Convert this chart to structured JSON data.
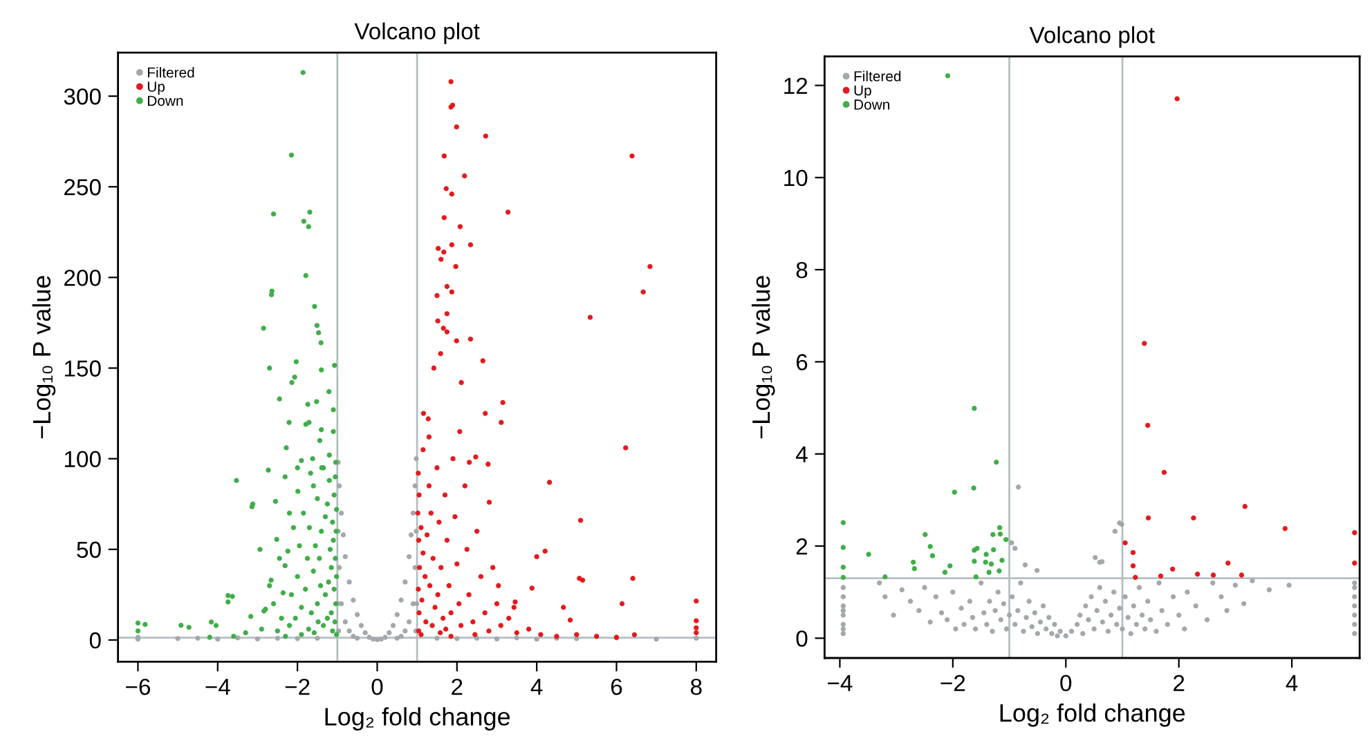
{
  "chart_data": [
    {
      "type": "scatter",
      "title": "Volcano plot",
      "xlabel": "Log₂ fold change",
      "ylabel": "−Log₁₀ P value",
      "xlim": [
        -6.5,
        8.5
      ],
      "ylim": [
        -12,
        324
      ],
      "xticks": [
        -6,
        -4,
        -2,
        0,
        2,
        4,
        6,
        8
      ],
      "yticks": [
        0,
        50,
        100,
        150,
        200,
        250,
        300
      ],
      "legend": "top left",
      "marker": "circle",
      "grid": false,
      "ref_lines": [
        {
          "axis": "x",
          "value": -1,
          "color": "#b4bec2"
        },
        {
          "axis": "x",
          "value": 1,
          "color": "#b4bec2"
        },
        {
          "axis": "y",
          "value": 1.3,
          "color": "#b4bec2"
        }
      ],
      "series": [
        {
          "name": "Filtered",
          "color": "#a3a8aa",
          "x": [
            -0.98,
            -0.95,
            -0.9,
            -0.85,
            -0.8,
            -0.7,
            -0.6,
            -0.5,
            -0.4,
            -0.3,
            -0.2,
            -0.1,
            0,
            0.1,
            0.2,
            0.3,
            0.4,
            0.5,
            0.6,
            0.7,
            0.8,
            0.85,
            0.9,
            0.95,
            0.98,
            -0.95,
            -0.9,
            -0.8,
            -0.7,
            -0.6,
            -0.5,
            0.5,
            0.6,
            0.7,
            0.8,
            0.9,
            0.95,
            -0.98,
            0.98,
            -0.99,
            0.99,
            -0.97,
            0.97,
            -1.5,
            -2,
            -2.5,
            -3,
            -3.5,
            -4,
            -4.5,
            -5,
            -6,
            -6,
            1.5,
            2,
            2.5,
            3,
            3.5,
            4,
            4.5,
            5,
            6,
            7,
            8
          ],
          "values": [
            98,
            85,
            70,
            58,
            46,
            32,
            22,
            14,
            8,
            4,
            1.5,
            0.5,
            0.2,
            0.5,
            1.5,
            4,
            8,
            14,
            22,
            32,
            46,
            58,
            70,
            85,
            100,
            40,
            20,
            10,
            5,
            2,
            1,
            1,
            2,
            5,
            10,
            20,
            40,
            60,
            60,
            20,
            20,
            5,
            5,
            1,
            0.8,
            1,
            0.6,
            1.2,
            0.5,
            1,
            0.8,
            1.5,
            0.5,
            1,
            0.8,
            1,
            0.6,
            1.2,
            0.5,
            1,
            0.8,
            1.2,
            0.5,
            1
          ]
        },
        {
          "name": "Up",
          "color": "#e41a1c",
          "x": [
            1.85,
            1.89,
            1.85,
            1.99,
            2.72,
            6.39,
            1.68,
            2.19,
            1.73,
            1.87,
            3.28,
            1.68,
            2.08,
            1.53,
            1.67,
            2.34,
            1.6,
            1.87,
            1.97,
            6.84,
            6.67,
            1.75,
            1.87,
            1.5,
            1.75,
            5.34,
            1.52,
            1.66,
            1.75,
            1.99,
            2.34,
            2.65,
            1.59,
            1.42,
            2.11,
            3.15,
            2.71,
            3.11,
            1.16,
            1.28,
            2.07,
            6.23,
            2.47,
            2.31,
            2.78,
            4.32,
            2.81,
            5.1,
            4.21,
            4.0,
            5.07,
            5.15,
            6.41,
            6.14,
            8.0,
            8.0,
            8.0,
            8.0,
            6.45,
            4.67,
            4.84,
            3.88,
            3.43,
            3.04,
            3.46,
            1.03,
            1.05,
            1.02,
            1.1,
            1.04,
            1.15,
            1.06,
            1.2,
            1.03,
            1.12,
            1.05,
            1.22,
            1.04,
            1.3,
            1.35,
            1.25,
            1.4,
            1.32,
            1.45,
            1.38,
            1.5,
            1.55,
            1.6,
            1.52,
            1.65,
            1.58,
            1.7,
            1.75,
            1.8,
            1.85,
            1.72,
            1.9,
            1.95,
            2.0,
            2.05,
            2.1,
            2.2,
            2.25,
            2.3,
            2.4,
            2.5,
            2.6,
            2.7,
            2.8,
            2.9,
            3.0,
            3.1,
            3.3,
            3.5,
            3.8,
            4.1,
            4.5,
            5.0,
            5.5,
            6.0,
            2.45,
            1.1,
            1.85,
            1.15,
            1.3
          ],
          "values": [
            308,
            295,
            294,
            283,
            278,
            267,
            267,
            256,
            249,
            246,
            236,
            233,
            228,
            216,
            214,
            218,
            210,
            218,
            206,
            206,
            192,
            195,
            192,
            190,
            180,
            178,
            176,
            172,
            170,
            165,
            166,
            154,
            158,
            150,
            142,
            131,
            125,
            120,
            125,
            122,
            115,
            106,
            101,
            98,
            97,
            87,
            76,
            66,
            49,
            46,
            34,
            33,
            34,
            20,
            21.5,
            10.6,
            6.7,
            4,
            2.9,
            18,
            11,
            28.6,
            18,
            30,
            21,
            92,
            80,
            70,
            62,
            55,
            48,
            40,
            35,
            28,
            22,
            15,
            10,
            5,
            85,
            70,
            58,
            45,
            30,
            18,
            8,
            95,
            65,
            40,
            25,
            12,
            4,
            80,
            55,
            30,
            15,
            6,
            100,
            68,
            42,
            20,
            8,
            85,
            50,
            25,
            10,
            60,
            35,
            15,
            5,
            40,
            20,
            8,
            12,
            4,
            6,
            3,
            2,
            3,
            2,
            1.5,
            3,
            3,
            2,
            105,
            112
          ]
        },
        {
          "name": "Down",
          "color": "#3fae49",
          "x": [
            -1.86,
            -2.15,
            -2.6,
            -1.69,
            -1.84,
            -1.72,
            -2.64,
            -2.65,
            -1.79,
            -1.57,
            -1.51,
            -1.47,
            -1.41,
            -2.85,
            -2.7,
            -2.03,
            -2.14,
            -2.07,
            -1.4,
            -1.07,
            -2.45,
            -2.21,
            -3.53,
            -3.14,
            -3.12,
            -2.73,
            -2.94,
            -3.74,
            -3.63,
            -3.74,
            -6.0,
            -5.82,
            -6.0,
            -4.92,
            -4.72,
            -4.16,
            -4.04,
            -3.17,
            -2.84,
            -1.04,
            -1.21,
            -1.74,
            -1.52,
            -1.1,
            -1.71,
            -1.79,
            -1.4,
            -2.28,
            -1.9,
            -2.31,
            -1.67,
            -1.39,
            -1.99,
            -2.55,
            -2.2,
            -2.52,
            -2.24,
            -2.31,
            -2.66,
            -2.36,
            -2.8,
            -1.05,
            -1.08,
            -1.02,
            -1.12,
            -1.03,
            -1.1,
            -1.2,
            -1.25,
            -1.3,
            -1.18,
            -1.05,
            -1.15,
            -1.02,
            -1.22,
            -1.08,
            -1.3,
            -1.04,
            -1.15,
            -1.25,
            -1.06,
            -1.35,
            -1.12,
            -1.02,
            -1.4,
            -1.45,
            -1.5,
            -1.55,
            -1.6,
            -1.42,
            -1.5,
            -1.65,
            -1.48,
            -1.7,
            -1.75,
            -1.8,
            -1.85,
            -1.9,
            -1.72,
            -1.95,
            -2.0,
            -2.05,
            -2.1,
            -2.15,
            -2.2,
            -1.58,
            -1.9,
            -2.4,
            -2.5,
            -2.6,
            -2.3,
            -2.9,
            -3.3,
            -3.6,
            -4.2,
            -1.35,
            -1.6,
            -1.2,
            -1.44,
            -1.62,
            -2.0,
            -1.1,
            -2.45,
            -2.7
          ],
          "values": [
            313,
            267.5,
            235,
            236,
            231,
            228,
            192.5,
            190.5,
            201,
            184,
            173.5,
            169.5,
            164,
            172,
            150,
            153.5,
            142,
            145,
            149,
            151.5,
            133,
            120,
            88,
            73.5,
            75,
            93.7,
            50,
            24.5,
            24,
            21,
            9.4,
            8.6,
            5,
            8.1,
            7,
            9.9,
            8,
            13,
            16,
            98,
            137,
            130,
            131.5,
            127,
            120,
            119,
            116,
            106,
            99,
            90,
            92,
            95,
            82,
            76.5,
            70,
            55.5,
            49,
            41,
            33,
            26,
            17,
            90,
            80,
            72,
            65,
            60,
            55,
            88,
            75,
            68,
            50,
            45,
            40,
            35,
            32,
            28,
            25,
            20,
            15,
            12,
            10,
            8,
            5,
            3,
            60,
            45,
            78,
            52,
            38,
            30,
            20,
            15,
            10,
            62,
            45,
            28,
            70,
            18,
            6,
            52,
            35,
            12,
            62,
            25,
            8,
            4,
            3,
            12,
            5,
            20,
            2,
            6,
            4,
            2,
            1.5,
            95,
            85,
            102,
            110,
            100,
            95,
            115,
            45,
            30
          ]
        }
      ]
    },
    {
      "type": "scatter",
      "title": "Volcano plot",
      "xlabel": "Log₂ fold change",
      "ylabel": "−Log₁₀ P value",
      "xlim": [
        -4.27,
        5.2
      ],
      "ylim": [
        -0.43,
        12.63
      ],
      "xticks": [
        -4,
        -2,
        0,
        2,
        4
      ],
      "yticks": [
        0,
        2,
        4,
        6,
        8,
        10,
        12
      ],
      "legend": "top left",
      "marker": "circle",
      "grid": false,
      "ref_lines": [
        {
          "axis": "x",
          "value": -1,
          "color": "#b4bec2"
        },
        {
          "axis": "x",
          "value": 1,
          "color": "#b4bec2"
        },
        {
          "axis": "y",
          "value": 1.3,
          "color": "#b4bec2"
        }
      ],
      "series": [
        {
          "name": "Filtered",
          "color": "#a3a8aa",
          "x": [
            -3.94,
            -3.94,
            -3.94,
            -3.94,
            -3.94,
            -3.94,
            -3.94,
            -3.94,
            5.11,
            5.11,
            5.11,
            5.11,
            5.11,
            5.11,
            5.11,
            -3.3,
            -3.2,
            -3.05,
            -2.9,
            -2.75,
            -2.6,
            -2.5,
            -2.4,
            -2.3,
            -2.2,
            -2.1,
            -2.0,
            -1.95,
            -1.85,
            -1.8,
            -1.7,
            -1.65,
            -1.6,
            -1.5,
            -1.45,
            -1.4,
            -1.35,
            -1.3,
            -1.25,
            -1.2,
            -1.15,
            -1.1,
            -1.05,
            -1.0,
            -0.95,
            -0.9,
            -0.85,
            -0.8,
            -0.75,
            -0.7,
            -0.65,
            -0.6,
            -0.55,
            -0.5,
            -0.45,
            -0.4,
            -0.35,
            -0.3,
            -0.25,
            -0.2,
            -0.15,
            -0.1,
            0,
            0.1,
            0.2,
            0.25,
            0.3,
            0.35,
            0.4,
            0.45,
            0.5,
            0.55,
            0.6,
            0.65,
            0.7,
            0.75,
            0.8,
            0.85,
            0.9,
            0.95,
            1.0,
            1.05,
            1.1,
            1.15,
            1.2,
            1.25,
            1.3,
            1.35,
            1.4,
            1.45,
            1.5,
            1.6,
            1.65,
            1.7,
            1.8,
            1.9,
            2.0,
            2.1,
            2.15,
            2.3,
            2.5,
            2.6,
            2.75,
            2.85,
            3.0,
            3.15,
            3.3,
            3.6,
            3.95,
            -0.84,
            0.95,
            0.99,
            0.87,
            0.52,
            0.64,
            0.6,
            -0.96,
            -0.9,
            -0.72,
            -0.51
          ],
          "values": [
            0.1,
            0.3,
            0.5,
            0.7,
            0.9,
            1.1,
            0.2,
            0.6,
            0.1,
            0.3,
            0.5,
            0.7,
            0.9,
            1.1,
            1.2,
            1.2,
            0.9,
            0.5,
            1.05,
            0.8,
            0.6,
            1.1,
            0.35,
            0.9,
            0.55,
            0.4,
            1.0,
            0.2,
            0.65,
            0.3,
            0.8,
            0.45,
            0.2,
            1.2,
            0.55,
            0.3,
            0.8,
            0.15,
            0.6,
            1.0,
            0.4,
            0.75,
            0.2,
            0.5,
            0.9,
            0.3,
            0.6,
            1.2,
            0.15,
            0.45,
            0.8,
            0.25,
            0.55,
            0.1,
            0.35,
            0.7,
            0.2,
            0.45,
            0.1,
            0.3,
            0.05,
            0.15,
            0.05,
            0.15,
            0.3,
            0.5,
            0.1,
            0.7,
            0.4,
            0.9,
            0.2,
            0.6,
            1.1,
            0.35,
            0.8,
            0.15,
            0.5,
            1.0,
            0.3,
            0.65,
            0.2,
            0.9,
            0.45,
            0.1,
            0.7,
            0.3,
            1.1,
            0.5,
            0.2,
            0.8,
            0.4,
            0.15,
            1.2,
            0.6,
            0.3,
            0.9,
            0.5,
            0.2,
            1.0,
            0.7,
            0.4,
            1.2,
            0.9,
            0.6,
            1.15,
            0.75,
            1.25,
            1.05,
            1.15,
            3.28,
            2.5,
            2.47,
            2.32,
            1.75,
            1.66,
            1.65,
            2.07,
            1.95,
            1.59,
            1.47
          ]
        },
        {
          "name": "Up",
          "color": "#e41a1c",
          "x": [
            1.97,
            1.39,
            1.45,
            1.74,
            1.46,
            2.26,
            3.17,
            3.88,
            5.11,
            5.11,
            1.05,
            1.19,
            1.19,
            1.23,
            1.68,
            1.89,
            2.33,
            2.61,
            2.87,
            3.11
          ],
          "values": [
            11.71,
            6.4,
            4.62,
            3.6,
            2.61,
            2.61,
            2.86,
            2.38,
            2.29,
            1.63,
            2.07,
            1.86,
            1.57,
            1.32,
            1.35,
            1.5,
            1.39,
            1.37,
            1.63,
            1.37
          ]
        },
        {
          "name": "Down",
          "color": "#3fae49",
          "x": [
            -2.09,
            -1.62,
            -1.23,
            -1.97,
            -1.63,
            -3.94,
            -3.94,
            -3.94,
            -3.94,
            -3.49,
            -3.2,
            -2.49,
            -2.4,
            -2.36,
            -2.7,
            -2.68,
            -2.05,
            -2.14,
            -1.62,
            -1.57,
            -1.62,
            -1.59,
            -1.41,
            -1.42,
            -1.32,
            -1.36,
            -1.28,
            -1.29,
            -1.17,
            -1.16,
            -1.06,
            -1.13,
            -1.18
          ],
          "values": [
            12.21,
            4.99,
            3.82,
            3.17,
            3.26,
            2.51,
            1.97,
            1.54,
            1.32,
            1.82,
            1.33,
            2.25,
            1.99,
            1.79,
            1.65,
            1.51,
            1.57,
            1.43,
            1.91,
            1.95,
            1.67,
            1.33,
            1.82,
            1.65,
            1.61,
            1.43,
            1.92,
            2.25,
            2.4,
            2.26,
            2.14,
            1.69,
            1.46
          ]
        }
      ]
    }
  ]
}
